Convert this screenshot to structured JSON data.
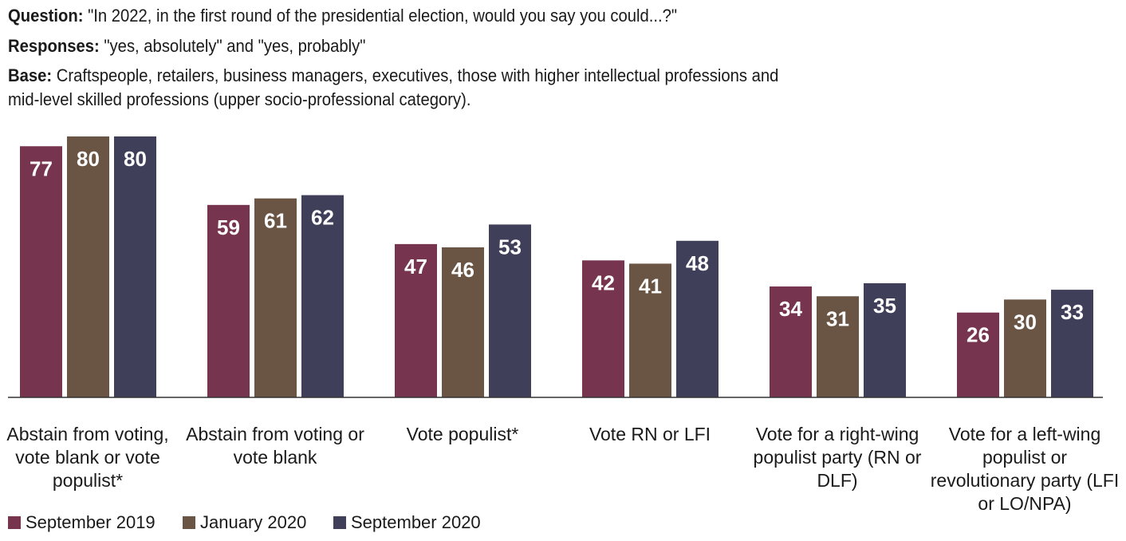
{
  "chart_data": {
    "type": "bar",
    "notes": [
      {
        "label": "Question:",
        "text": "\"In 2022, in the first round of the presidential election, would you say you could...?\""
      },
      {
        "label": "Responses:",
        "text": "\"yes, absolutely\" and \"yes, probably\""
      },
      {
        "label": "Base:",
        "text": "Craftspeople, retailers, business managers, executives, those with higher intellectual professions and mid-level skilled professions (upper socio-professional category)."
      }
    ],
    "categories": [
      "Abstain from voting, vote blank or vote populist*",
      "Abstain from voting or vote blank",
      "Vote populist*",
      "Vote RN or LFI",
      "Vote for a right-wing populist party (RN or DLF)",
      "Vote for a left-wing populist or revolutionary party (LFI or LO/NPA)"
    ],
    "series": [
      {
        "name": "September 2019",
        "color": "#76344f",
        "values": [
          77,
          59,
          47,
          42,
          34,
          26
        ]
      },
      {
        "name": "January 2020",
        "color": "#6a5444",
        "values": [
          80,
          61,
          46,
          41,
          31,
          30
        ]
      },
      {
        "name": "September 2020",
        "color": "#3f3f5a",
        "values": [
          80,
          62,
          53,
          48,
          35,
          33
        ]
      }
    ],
    "ylim": [
      0,
      80
    ],
    "legend": "bottom-left"
  }
}
